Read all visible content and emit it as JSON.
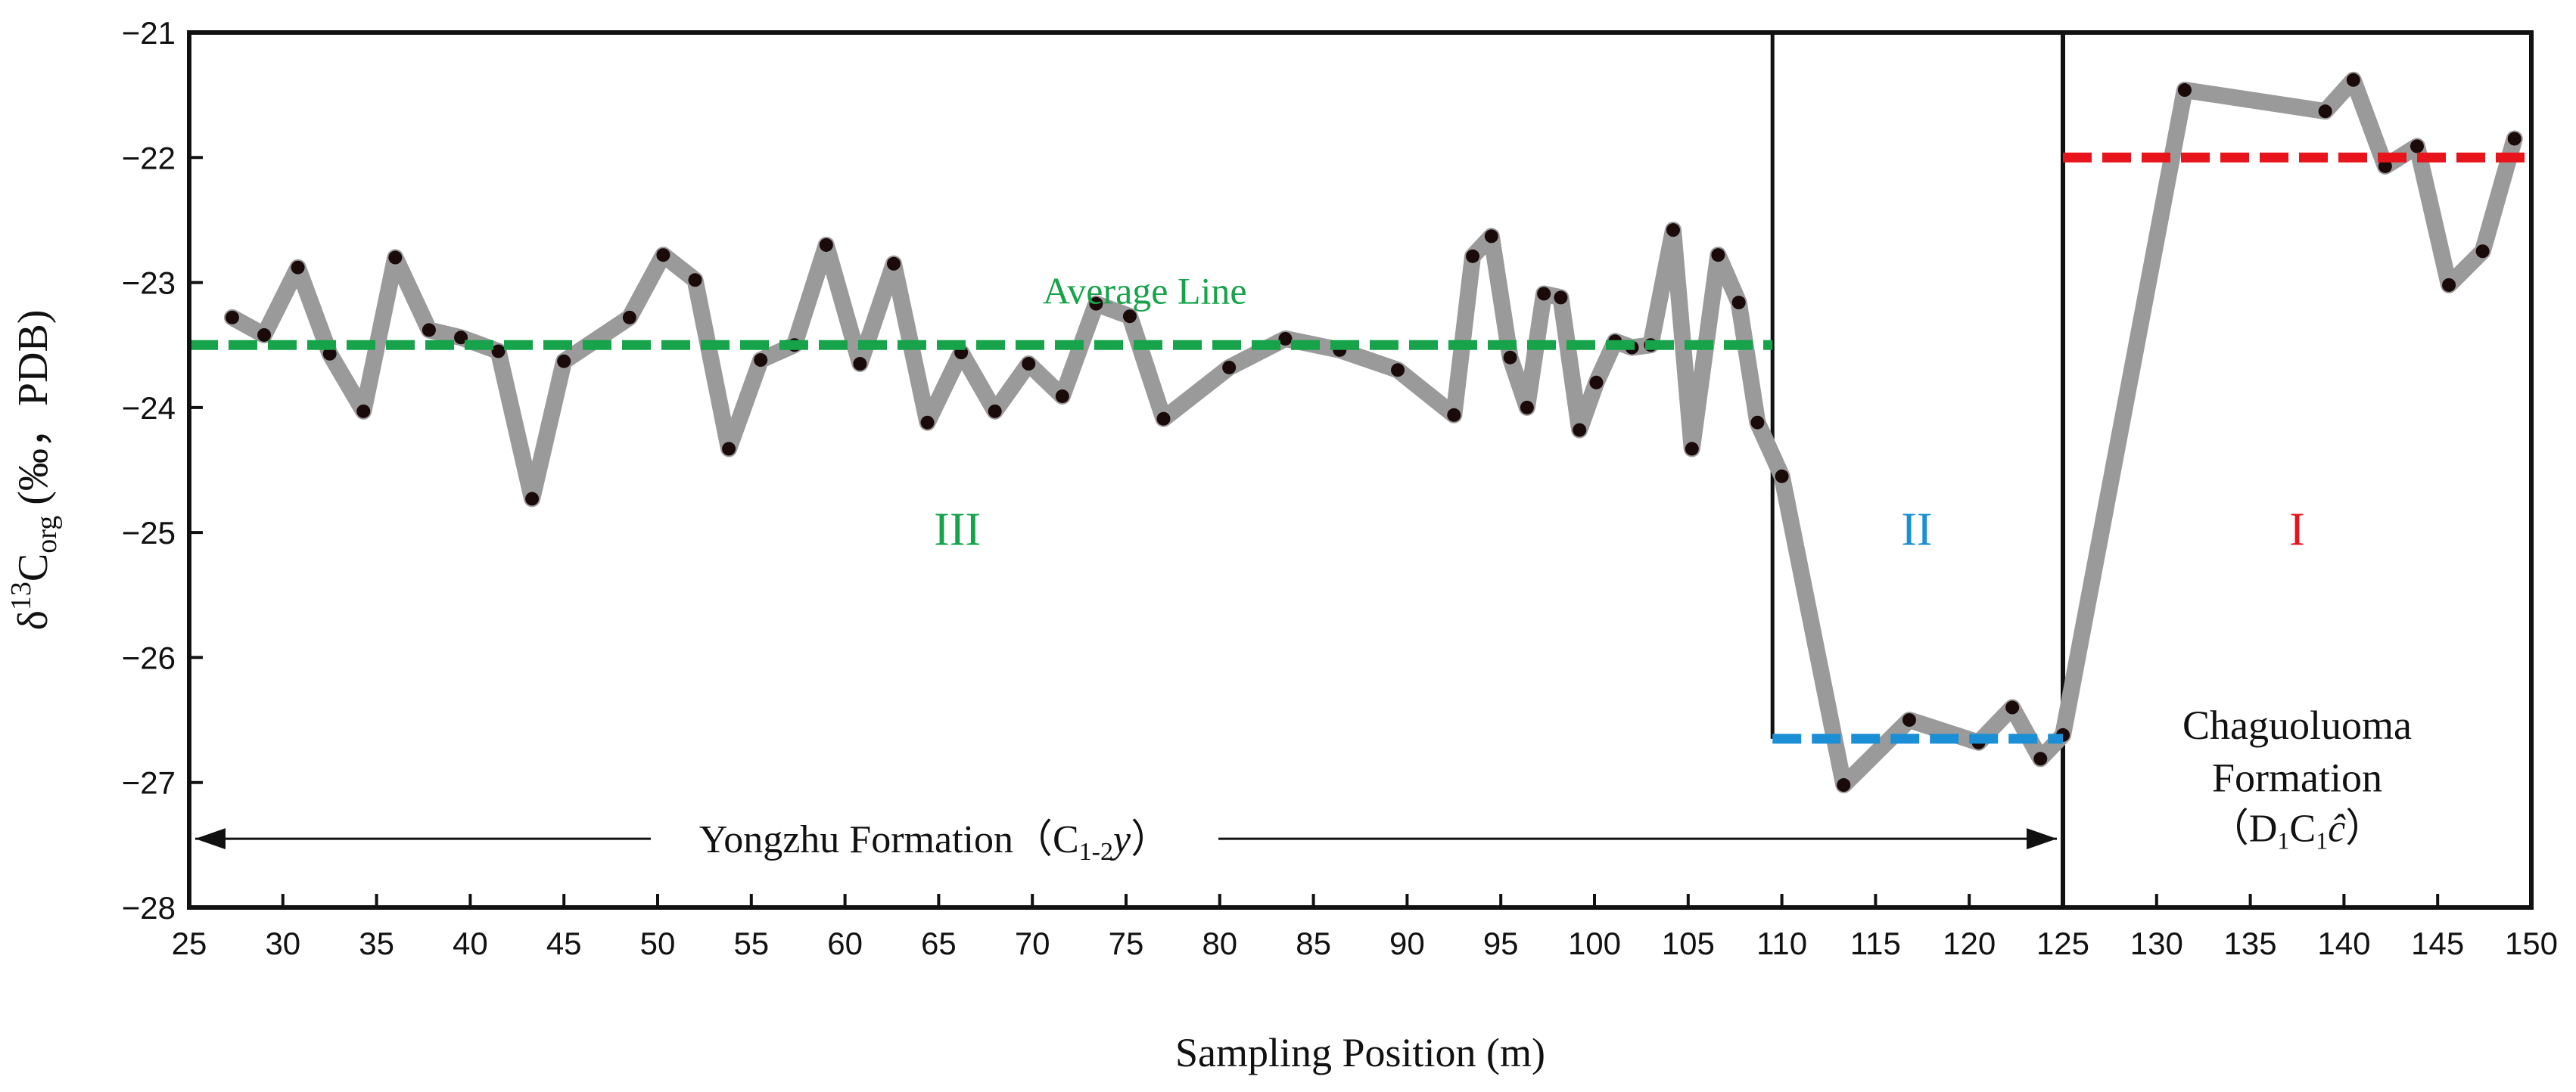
{
  "chart_data": {
    "type": "line",
    "xlabel": "Sampling Position (m)",
    "ylabel": {
      "prefix": "δ",
      "sup": "13",
      "sub": "C",
      "sub2": "org",
      "unit": " (‰，PDB)"
    },
    "xlim": [
      25,
      150
    ],
    "ylim": [
      -28,
      -21
    ],
    "xticks": [
      25,
      30,
      35,
      40,
      45,
      50,
      55,
      60,
      65,
      70,
      75,
      80,
      85,
      90,
      95,
      100,
      105,
      110,
      115,
      120,
      125,
      130,
      135,
      140,
      145,
      150
    ],
    "yticks": [
      -21,
      -22,
      -23,
      -24,
      -25,
      -26,
      -27,
      -28
    ],
    "ytick_labels": [
      "−21",
      "−22",
      "−23",
      "−24",
      "−25",
      "−26",
      "−27",
      "−28"
    ],
    "series": [
      {
        "name": "δ13Corg",
        "color": "#9a9a9a",
        "marker_color": "#1a0a0a",
        "x": [
          27.3,
          29.0,
          30.8,
          32.5,
          34.3,
          36.0,
          37.8,
          39.5,
          41.5,
          43.3,
          45.0,
          48.5,
          50.3,
          52.0,
          53.8,
          55.5,
          57.3,
          59.0,
          60.8,
          62.6,
          64.4,
          66.2,
          68.0,
          69.8,
          71.6,
          73.4,
          75.2,
          77.0,
          80.5,
          83.5,
          86.4,
          89.5,
          92.5,
          93.5,
          94.5,
          95.5,
          96.4,
          97.3,
          98.2,
          99.2,
          100.1,
          101.1,
          102.0,
          103.0,
          104.2,
          105.2,
          106.6,
          107.7,
          108.7,
          110.0,
          113.3,
          116.8,
          120.5,
          122.3,
          123.8,
          125.0,
          131.5,
          139.0,
          140.5,
          142.2,
          143.9,
          145.6,
          147.4,
          149.1
        ],
        "y": [
          -23.28,
          -23.42,
          -22.88,
          -23.57,
          -24.03,
          -22.8,
          -23.38,
          -23.44,
          -23.55,
          -24.73,
          -23.63,
          -23.28,
          -22.78,
          -22.98,
          -24.33,
          -23.62,
          -23.5,
          -22.7,
          -23.65,
          -22.85,
          -24.12,
          -23.56,
          -24.03,
          -23.65,
          -23.91,
          -23.17,
          -23.27,
          -24.09,
          -23.68,
          -23.45,
          -23.54,
          -23.7,
          -24.06,
          -22.79,
          -22.63,
          -23.6,
          -24.0,
          -23.09,
          -23.12,
          -24.18,
          -23.8,
          -23.47,
          -23.52,
          -23.5,
          -22.58,
          -24.33,
          -22.78,
          -23.16,
          -24.12,
          -24.55,
          -27.02,
          -26.5,
          -26.68,
          -26.4,
          -26.81,
          -26.62,
          -21.46,
          -21.63,
          -21.38,
          -22.07,
          -21.91,
          -23.02,
          -22.75,
          -21.85
        ]
      }
    ],
    "average_lines": [
      {
        "name": "Average Line",
        "label": "Average Line",
        "x1": 25,
        "x2": 109.5,
        "y": -23.5,
        "color": "#16a34a"
      },
      {
        "name": "stage-II-average",
        "x1": 109.5,
        "x2": 125,
        "y": -26.65,
        "color": "#1b8fd6"
      },
      {
        "name": "stage-I-average",
        "x1": 125,
        "x2": 150,
        "y": -22.0,
        "color": "#e8141b"
      }
    ],
    "boundaries": [
      109.5,
      125
    ],
    "stage_II_box": {
      "x1": 109.5,
      "x2": 125,
      "y_top": -21,
      "y_bottom": -26.65
    },
    "stages": [
      {
        "label": "III",
        "x": 66,
        "y": -25.1,
        "color": "#16a34a"
      },
      {
        "label": "II",
        "x": 117.2,
        "y": -25.1,
        "color": "#1b8fd6"
      },
      {
        "label": "I",
        "x": 137.5,
        "y": -25.1,
        "color": "#e8141b"
      }
    ],
    "formations": [
      {
        "name": "Yongzhu Formation",
        "symbol_base": "C",
        "symbol_sub": "1-2",
        "symbol_tail": "y",
        "arrow_from": 25,
        "arrow_to": 125,
        "y": -27.45
      },
      {
        "name_line1": "Chaguoluoma",
        "name_line2": "Formation",
        "symbol": "D",
        "sub1": "1",
        "symbol2": "C",
        "sub2": "1",
        "tail": "ĉ"
      }
    ]
  }
}
